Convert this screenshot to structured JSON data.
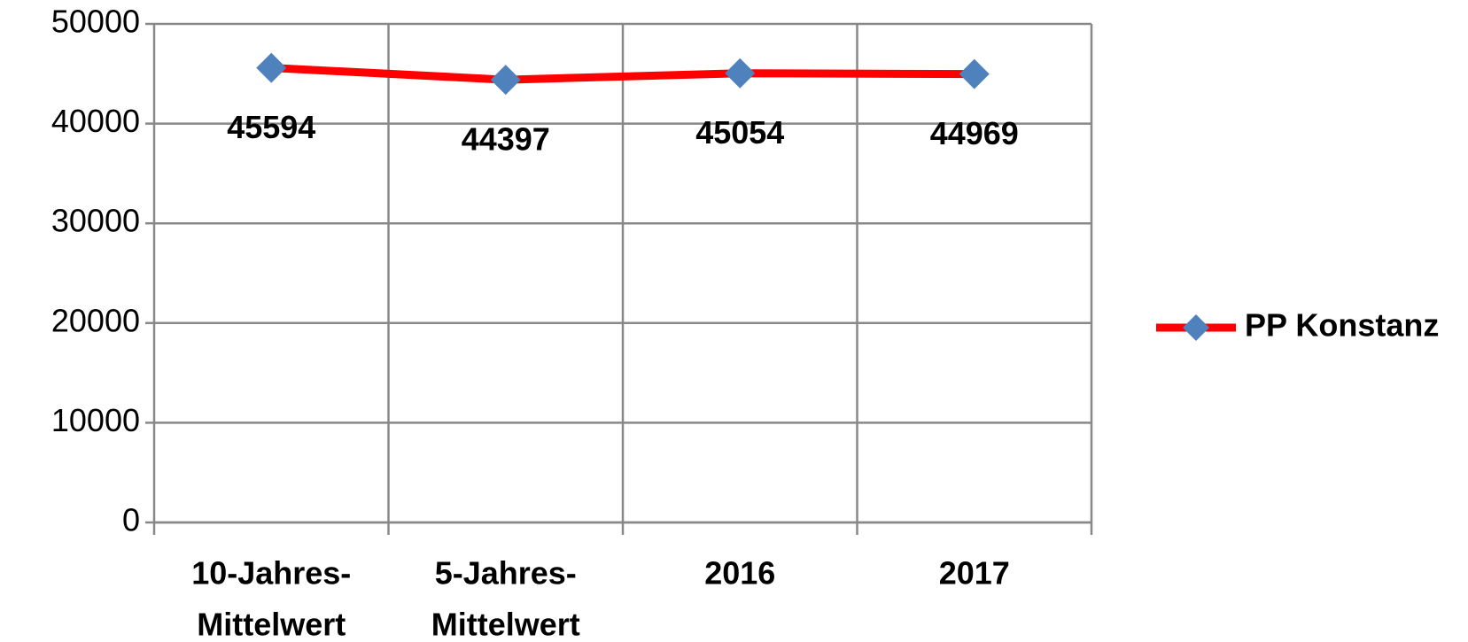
{
  "chart_data": {
    "type": "line",
    "categories": [
      [
        "10-Jahres-",
        "Mittelwert"
      ],
      [
        "5-Jahres-",
        "Mittelwert"
      ],
      [
        "2016"
      ],
      [
        "2017"
      ]
    ],
    "series": [
      {
        "name": "PP Konstanz",
        "color": "#ff0000",
        "marker_color": "#4f81bd",
        "values": [
          45594,
          44397,
          45054,
          44969
        ]
      }
    ],
    "ylim": [
      0,
      50000
    ],
    "yticks": [
      0,
      10000,
      20000,
      30000,
      40000,
      50000
    ],
    "grid": true,
    "legend": "right"
  }
}
